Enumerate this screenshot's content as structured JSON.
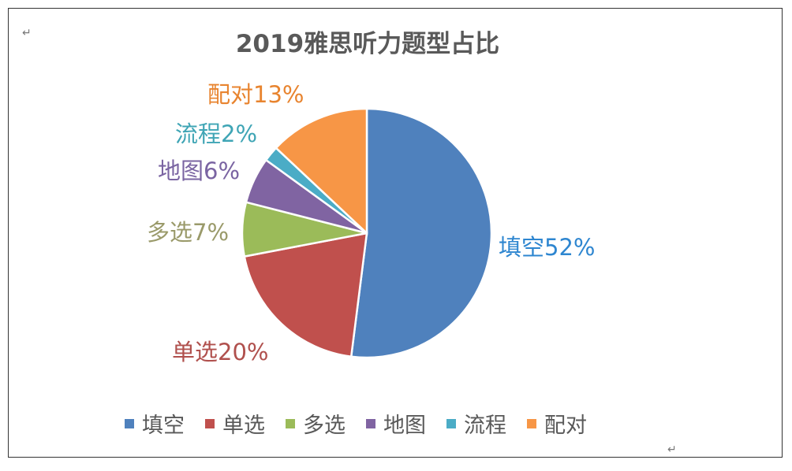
{
  "chart_data": {
    "type": "pie",
    "title": "2019雅思听力题型占比",
    "categories": [
      "填空",
      "单选",
      "多选",
      "地图",
      "流程",
      "配对"
    ],
    "values": [
      52,
      20,
      7,
      6,
      2,
      13
    ],
    "labels": [
      "填空52%",
      "单选20%",
      "多选7%",
      "地图6%",
      "流程2%",
      "配对13%"
    ],
    "colors": [
      "#4F81BD",
      "#C0504D",
      "#9BBB59",
      "#8064A2",
      "#4BACC6",
      "#F79646"
    ],
    "label_colors": [
      "#2E86D0",
      "#B0504D",
      "#9A9A6A",
      "#7A64A2",
      "#3FA5B5",
      "#E8842F"
    ],
    "legend_position": "bottom",
    "start_angle_deg": 0,
    "direction": "clockwise"
  },
  "paragraph_mark": "↵"
}
